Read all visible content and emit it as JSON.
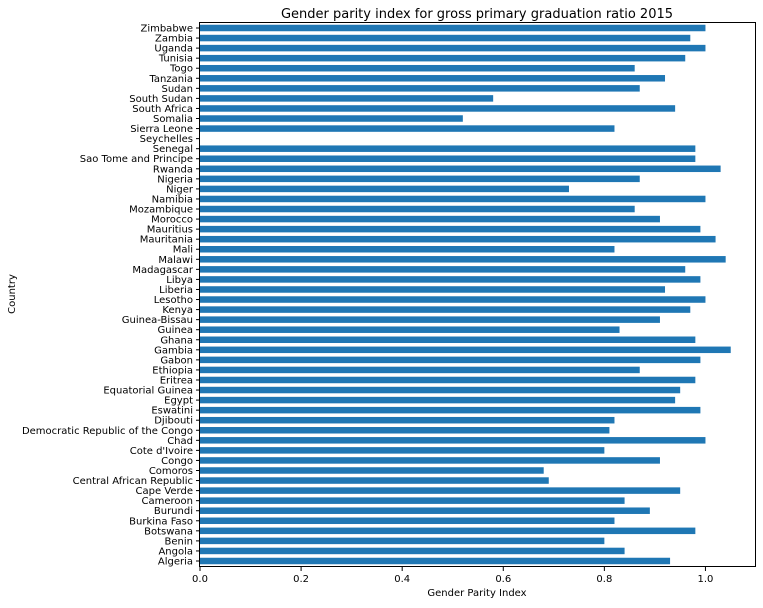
{
  "chart_data": {
    "type": "bar",
    "orientation": "horizontal",
    "title": "Gender parity index for gross primary graduation ratio 2015",
    "xlabel": "Gender Parity Index",
    "ylabel": "Country",
    "xlim": [
      0,
      1.1
    ],
    "xticks": [
      "0.0",
      "0.2",
      "0.4",
      "0.6",
      "0.8",
      "1.0"
    ],
    "grid": false,
    "bar_color": "#1f77b4",
    "categories": [
      "Zimbabwe",
      "Zambia",
      "Uganda",
      "Tunisia",
      "Togo",
      "Tanzania",
      "Sudan",
      "South Sudan",
      "South Africa",
      "Somalia",
      "Sierra Leone",
      "Seychelles",
      "Senegal",
      "Sao Tome and Principe",
      "Rwanda",
      "Nigeria",
      "Niger",
      "Namibia",
      "Mozambique",
      "Morocco",
      "Mauritius",
      "Mauritania",
      "Mali",
      "Malawi",
      "Madagascar",
      "Libya",
      "Liberia",
      "Lesotho",
      "Kenya",
      "Guinea-Bissau",
      "Guinea",
      "Ghana",
      "Gambia",
      "Gabon",
      "Ethiopia",
      "Eritrea",
      "Equatorial Guinea",
      "Egypt",
      "Eswatini",
      "Djibouti",
      "Democratic Republic of the Congo",
      "Chad",
      "Cote d'Ivoire",
      "Congo",
      "Comoros",
      "Central African Republic",
      "Cape Verde",
      "Cameroon",
      "Burundi",
      "Burkina Faso",
      "Botswana",
      "Benin",
      "Angola",
      "Algeria"
    ],
    "values": [
      1.0,
      0.97,
      1.0,
      0.96,
      0.86,
      0.92,
      0.87,
      0.58,
      0.94,
      0.52,
      0.82,
      null,
      0.98,
      0.98,
      1.03,
      0.87,
      0.73,
      1.0,
      0.86,
      0.91,
      0.99,
      1.02,
      0.82,
      1.04,
      0.96,
      0.99,
      0.92,
      1.0,
      0.97,
      0.91,
      0.83,
      0.98,
      1.05,
      0.99,
      0.87,
      0.98,
      0.95,
      0.94,
      0.99,
      0.82,
      0.81,
      1.0,
      0.8,
      0.91,
      0.68,
      0.69,
      0.95,
      0.84,
      0.89,
      0.82,
      0.98,
      0.8,
      0.84,
      0.93
    ]
  }
}
